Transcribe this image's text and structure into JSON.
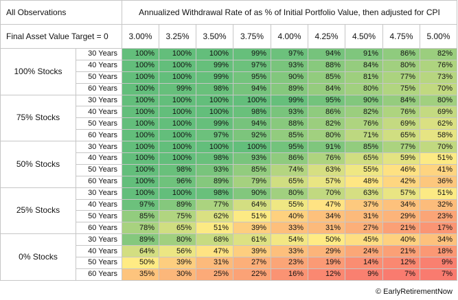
{
  "table": {
    "corner_top": "All Observations",
    "corner_bottom": "Final Asset Value Target = 0",
    "title": "Annualized Withdrawal Rate of as % of Initial Portfolio Value, then adjusted for CPI",
    "rates": [
      "3.00%",
      "3.25%",
      "3.50%",
      "3.75%",
      "4.00%",
      "4.25%",
      "4.50%",
      "4.75%",
      "5.00%"
    ],
    "groups": [
      {
        "label": "100% Stocks",
        "rows": [
          {
            "years": "30 Years",
            "values": [
              "100%",
              "100%",
              "100%",
              "99%",
              "97%",
              "94%",
              "91%",
              "86%",
              "82%"
            ],
            "nums": [
              100,
              100,
              100,
              99,
              97,
              94,
              91,
              86,
              82
            ]
          },
          {
            "years": "40 Years",
            "values": [
              "100%",
              "100%",
              "99%",
              "97%",
              "93%",
              "88%",
              "84%",
              "80%",
              "76%"
            ],
            "nums": [
              100,
              100,
              99,
              97,
              93,
              88,
              84,
              80,
              76
            ]
          },
          {
            "years": "50 Years",
            "values": [
              "100%",
              "100%",
              "99%",
              "95%",
              "90%",
              "85%",
              "81%",
              "77%",
              "73%"
            ],
            "nums": [
              100,
              100,
              99,
              95,
              90,
              85,
              81,
              77,
              73
            ]
          },
          {
            "years": "60 Years",
            "values": [
              "100%",
              "99%",
              "98%",
              "94%",
              "89%",
              "84%",
              "80%",
              "75%",
              "70%"
            ],
            "nums": [
              100,
              99,
              98,
              94,
              89,
              84,
              80,
              75,
              70
            ]
          }
        ]
      },
      {
        "label": "75% Stocks",
        "rows": [
          {
            "years": "30 Years",
            "values": [
              "100%",
              "100%",
              "100%",
              "100%",
              "99%",
              "95%",
              "90%",
              "84%",
              "80%"
            ],
            "nums": [
              100,
              100,
              100,
              100,
              99,
              95,
              90,
              84,
              80
            ]
          },
          {
            "years": "40 Years",
            "values": [
              "100%",
              "100%",
              "100%",
              "98%",
              "93%",
              "86%",
              "82%",
              "76%",
              "69%"
            ],
            "nums": [
              100,
              100,
              100,
              98,
              93,
              86,
              82,
              76,
              69
            ]
          },
          {
            "years": "50 Years",
            "values": [
              "100%",
              "100%",
              "99%",
              "94%",
              "88%",
              "82%",
              "76%",
              "69%",
              "62%"
            ],
            "nums": [
              100,
              100,
              99,
              94,
              88,
              82,
              76,
              69,
              62
            ]
          },
          {
            "years": "60 Years",
            "values": [
              "100%",
              "100%",
              "97%",
              "92%",
              "85%",
              "80%",
              "71%",
              "65%",
              "58%"
            ],
            "nums": [
              100,
              100,
              97,
              92,
              85,
              80,
              71,
              65,
              58
            ]
          }
        ]
      },
      {
        "label": "50% Stocks",
        "rows": [
          {
            "years": "30 Years",
            "values": [
              "100%",
              "100%",
              "100%",
              "100%",
              "95%",
              "91%",
              "85%",
              "77%",
              "70%"
            ],
            "nums": [
              100,
              100,
              100,
              100,
              95,
              91,
              85,
              77,
              70
            ]
          },
          {
            "years": "40 Years",
            "values": [
              "100%",
              "100%",
              "98%",
              "93%",
              "86%",
              "76%",
              "65%",
              "59%",
              "51%"
            ],
            "nums": [
              100,
              100,
              98,
              93,
              86,
              76,
              65,
              59,
              51
            ]
          },
          {
            "years": "50 Years",
            "values": [
              "100%",
              "98%",
              "93%",
              "85%",
              "74%",
              "63%",
              "55%",
              "46%",
              "41%"
            ],
            "nums": [
              100,
              98,
              93,
              85,
              74,
              63,
              55,
              46,
              41
            ]
          },
          {
            "years": "60 Years",
            "values": [
              "100%",
              "96%",
              "89%",
              "79%",
              "65%",
              "57%",
              "48%",
              "42%",
              "36%"
            ],
            "nums": [
              100,
              96,
              89,
              79,
              65,
              57,
              48,
              42,
              36
            ]
          }
        ]
      },
      {
        "label": "25% Stocks",
        "rows": [
          {
            "years": "30 Years",
            "values": [
              "100%",
              "100%",
              "98%",
              "90%",
              "80%",
              "70%",
              "63%",
              "57%",
              "51%"
            ],
            "nums": [
              100,
              100,
              98,
              90,
              80,
              70,
              63,
              57,
              51
            ]
          },
          {
            "years": "40 Years",
            "values": [
              "97%",
              "89%",
              "77%",
              "64%",
              "55%",
              "47%",
              "37%",
              "34%",
              "32%"
            ],
            "nums": [
              97,
              89,
              77,
              64,
              55,
              47,
              37,
              34,
              32
            ]
          },
          {
            "years": "50 Years",
            "values": [
              "85%",
              "75%",
              "62%",
              "51%",
              "40%",
              "34%",
              "31%",
              "29%",
              "23%"
            ],
            "nums": [
              85,
              75,
              62,
              51,
              40,
              34,
              31,
              29,
              23
            ]
          },
          {
            "years": "60 Years",
            "values": [
              "78%",
              "65%",
              "51%",
              "39%",
              "33%",
              "31%",
              "27%",
              "21%",
              "17%"
            ],
            "nums": [
              78,
              65,
              51,
              39,
              33,
              31,
              27,
              21,
              17
            ]
          }
        ]
      },
      {
        "label": "0% Stocks",
        "rows": [
          {
            "years": "30 Years",
            "values": [
              "89%",
              "80%",
              "68%",
              "61%",
              "54%",
              "50%",
              "45%",
              "40%",
              "34%"
            ],
            "nums": [
              89,
              80,
              68,
              61,
              54,
              50,
              45,
              40,
              34
            ]
          },
          {
            "years": "40 Years",
            "values": [
              "64%",
              "56%",
              "47%",
              "39%",
              "33%",
              "29%",
              "24%",
              "21%",
              "18%"
            ],
            "nums": [
              64,
              56,
              47,
              39,
              33,
              29,
              24,
              21,
              18
            ]
          },
          {
            "years": "50 Years",
            "values": [
              "50%",
              "39%",
              "31%",
              "27%",
              "23%",
              "19%",
              "14%",
              "12%",
              "9%"
            ],
            "nums": [
              50,
              39,
              31,
              27,
              23,
              19,
              14,
              12,
              9
            ]
          },
          {
            "years": "60 Years",
            "values": [
              "35%",
              "30%",
              "25%",
              "22%",
              "16%",
              "12%",
              "9%",
              "7%",
              "7%"
            ],
            "nums": [
              35,
              30,
              25,
              22,
              16,
              12,
              9,
              7,
              7
            ]
          }
        ]
      }
    ]
  },
  "colors": {
    "high": "#63be7b",
    "mid": "#ffeb84",
    "low": "#f8696b"
  },
  "footer": "© EarlyRetirementNow"
}
